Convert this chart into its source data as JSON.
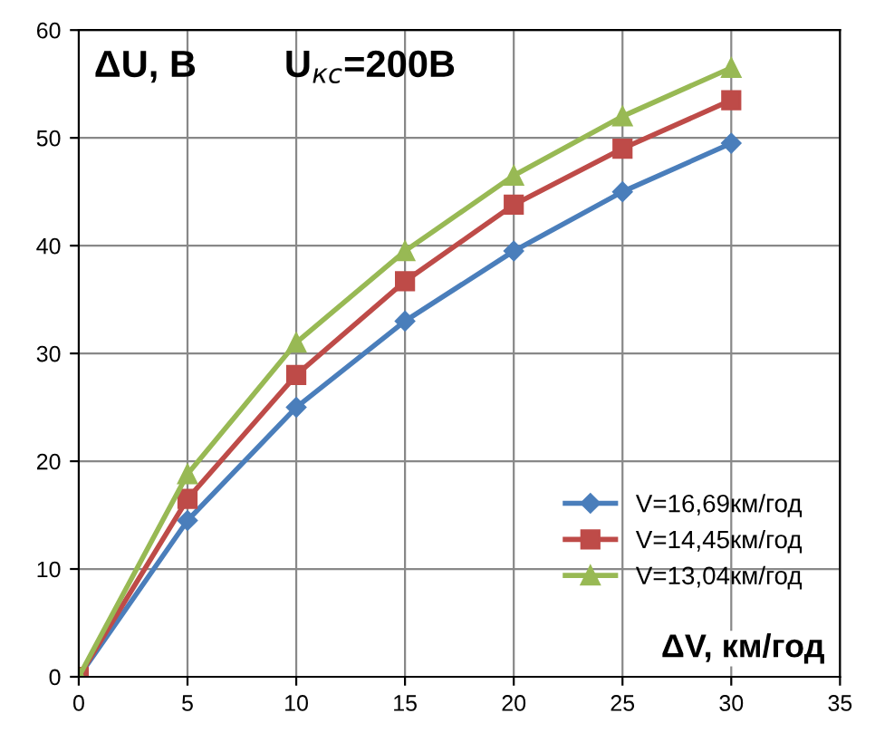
{
  "chart_data": {
    "type": "line",
    "ylabel": "ΔU, B",
    "xlabel": "ΔV, км/год",
    "annotations": [
      "U$_{кс}$=200B"
    ],
    "x": [
      0,
      5,
      10,
      15,
      20,
      25,
      30
    ],
    "series": [
      {
        "name": "V=16,69км/год",
        "color": "#4a7ebb",
        "marker": "diamond",
        "values": [
          0,
          14.5,
          25,
          33,
          39.5,
          45,
          49.5
        ]
      },
      {
        "name": "V=14,45км/год",
        "color": "#be4b48",
        "marker": "square",
        "values": [
          0,
          16.5,
          28,
          36.7,
          43.8,
          49,
          53.5
        ]
      },
      {
        "name": "V=13,04км/год",
        "color": "#98b954",
        "marker": "triangle",
        "values": [
          0,
          18.8,
          31,
          39.5,
          46.5,
          52,
          56.5
        ]
      }
    ],
    "xlim": [
      0,
      35
    ],
    "xticks": [
      0,
      5,
      10,
      15,
      20,
      25,
      30,
      35
    ],
    "ylim": [
      0,
      60
    ],
    "yticks": [
      0,
      10,
      20,
      30,
      40,
      50,
      60
    ],
    "grid": true,
    "legend": "bottom right"
  }
}
